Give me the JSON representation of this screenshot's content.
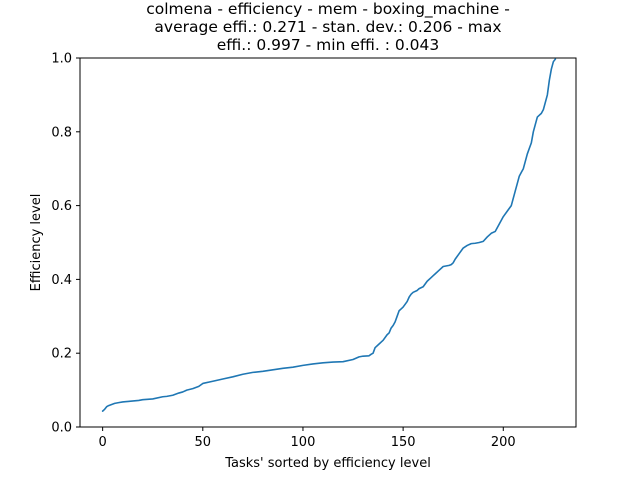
{
  "chart_data": {
    "type": "line",
    "title_lines": [
      "colmena - efficiency - mem - boxing_machine -",
      "average effi.: 0.271 - stan. dev.: 0.206 - max",
      "effi.: 0.997 - min effi. : 0.043"
    ],
    "xlabel": "Tasks' sorted by efficiency level",
    "ylabel": "Efficiency level",
    "xlim": [
      -11.3,
      236.3
    ],
    "ylim": [
      0,
      1.0
    ],
    "xticks": [
      0,
      50,
      100,
      150,
      200
    ],
    "yticks": [
      0.0,
      0.2,
      0.4,
      0.6,
      0.8,
      1.0
    ],
    "xtick_labels": [
      "0",
      "50",
      "100",
      "150",
      "200"
    ],
    "ytick_labels": [
      "0.0",
      "0.2",
      "0.4",
      "0.6",
      "0.8",
      "1.0"
    ],
    "grid": false,
    "line_color": "#1f77b4",
    "series": [
      {
        "x": [
          0,
          1,
          2,
          3,
          4,
          5,
          6,
          8,
          10,
          12,
          14,
          16,
          18,
          20,
          25,
          30,
          32,
          35,
          37,
          38,
          40,
          42,
          45,
          48,
          50,
          55,
          60,
          65,
          70,
          75,
          80,
          85,
          90,
          95,
          100,
          105,
          110,
          115,
          120,
          125,
          128,
          130,
          133,
          134,
          135,
          136,
          138,
          140,
          142,
          143,
          144,
          145,
          146,
          147,
          148,
          149,
          150,
          152,
          153,
          154,
          155,
          157,
          158,
          160,
          162,
          164,
          165,
          166,
          168,
          170,
          172,
          173,
          174,
          175,
          176,
          178,
          180,
          182,
          184,
          186,
          188,
          190,
          192,
          194,
          196,
          198,
          200,
          202,
          204,
          205,
          206,
          207,
          208,
          209,
          210,
          211,
          212,
          213,
          214,
          215,
          216,
          217,
          218,
          219,
          220,
          221,
          222,
          223,
          224,
          225,
          226
        ],
        "y": [
          0.043,
          0.048,
          0.055,
          0.058,
          0.06,
          0.062,
          0.064,
          0.066,
          0.068,
          0.069,
          0.07,
          0.071,
          0.072,
          0.074,
          0.076,
          0.082,
          0.083,
          0.086,
          0.09,
          0.092,
          0.095,
          0.1,
          0.104,
          0.11,
          0.118,
          0.124,
          0.13,
          0.136,
          0.143,
          0.148,
          0.151,
          0.155,
          0.159,
          0.162,
          0.167,
          0.171,
          0.174,
          0.176,
          0.177,
          0.183,
          0.19,
          0.192,
          0.193,
          0.197,
          0.2,
          0.215,
          0.225,
          0.235,
          0.25,
          0.255,
          0.268,
          0.275,
          0.285,
          0.3,
          0.315,
          0.32,
          0.325,
          0.34,
          0.352,
          0.36,
          0.365,
          0.37,
          0.375,
          0.38,
          0.395,
          0.405,
          0.41,
          0.415,
          0.425,
          0.435,
          0.437,
          0.438,
          0.44,
          0.445,
          0.455,
          0.47,
          0.485,
          0.492,
          0.497,
          0.498,
          0.5,
          0.503,
          0.515,
          0.525,
          0.53,
          0.55,
          0.57,
          0.585,
          0.6,
          0.62,
          0.64,
          0.66,
          0.68,
          0.69,
          0.7,
          0.72,
          0.74,
          0.755,
          0.77,
          0.8,
          0.82,
          0.84,
          0.845,
          0.85,
          0.86,
          0.88,
          0.9,
          0.94,
          0.97,
          0.99,
          0.997
        ]
      }
    ]
  }
}
